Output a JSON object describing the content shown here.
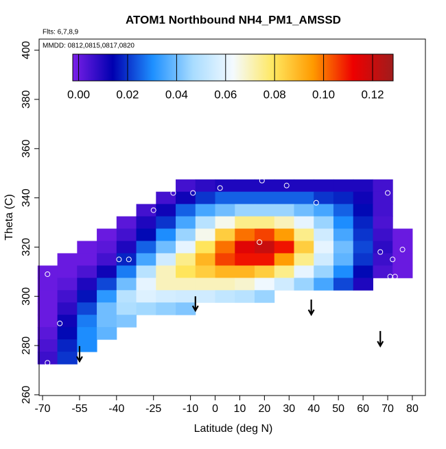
{
  "chart_data": {
    "type": "heatmap",
    "title": "ATOM1 Northbound NH4_PM1_AMSSD",
    "subtitle": "Flts: 6,7,8,9",
    "annotation": "MMDD: 0812,0815,0817,0820",
    "x_label": "Latitude (deg N)",
    "y_label": "Theta (C)",
    "xlim": [
      -71.4,
      85.3
    ],
    "ylim": [
      259.7,
      404.5
    ],
    "xticks": [
      -70,
      -55,
      -40,
      -25,
      -10,
      0,
      10,
      20,
      30,
      40,
      50,
      60,
      70,
      80
    ],
    "yticks": [
      260,
      280,
      300,
      320,
      340,
      360,
      380,
      400
    ],
    "lat": [
      -68,
      -60,
      -52,
      -44,
      -36,
      -28,
      -20,
      -12,
      -4,
      4,
      12,
      20,
      28,
      36,
      44,
      52,
      60,
      68,
      76
    ],
    "theta": [
      345,
      340,
      335,
      330,
      325,
      320,
      315,
      310,
      305,
      300,
      295,
      290,
      285,
      280,
      275
    ],
    "z": [
      [
        null,
        null,
        null,
        null,
        null,
        null,
        null,
        0.005,
        0.008,
        0.01,
        0.01,
        0.01,
        0.01,
        0.01,
        0.01,
        0.01,
        0.01,
        0.005,
        null
      ],
      [
        null,
        null,
        null,
        null,
        null,
        null,
        0.005,
        0.012,
        0.02,
        0.025,
        0.025,
        0.025,
        0.025,
        0.025,
        0.02,
        0.018,
        0.012,
        0.005,
        null
      ],
      [
        null,
        null,
        null,
        null,
        null,
        0.005,
        0.012,
        0.025,
        0.035,
        0.04,
        0.045,
        0.045,
        0.045,
        0.04,
        0.035,
        0.025,
        0.015,
        0.005,
        null
      ],
      [
        null,
        null,
        null,
        null,
        0.002,
        0.01,
        0.02,
        0.035,
        0.05,
        0.065,
        0.075,
        0.075,
        0.07,
        0.06,
        0.045,
        0.03,
        0.018,
        0.004,
        null
      ],
      [
        null,
        null,
        null,
        0.0,
        0.005,
        0.015,
        0.03,
        0.045,
        0.065,
        0.085,
        0.1,
        0.105,
        0.095,
        0.075,
        0.055,
        0.035,
        0.02,
        0.006,
        0.0
      ],
      [
        null,
        null,
        0.0,
        0.002,
        0.01,
        0.025,
        0.04,
        0.06,
        0.08,
        0.1,
        0.115,
        0.12,
        0.11,
        0.085,
        0.06,
        0.04,
        0.022,
        0.008,
        0.0
      ],
      [
        null,
        0.0,
        0.0,
        0.005,
        0.018,
        0.035,
        0.055,
        0.075,
        0.09,
        0.105,
        0.11,
        0.11,
        0.095,
        0.075,
        0.055,
        0.038,
        0.02,
        0.006,
        0.0
      ],
      [
        0.0,
        0.0,
        0.004,
        0.012,
        0.028,
        0.05,
        0.07,
        0.08,
        0.085,
        0.09,
        0.09,
        0.085,
        0.075,
        0.06,
        0.045,
        0.03,
        0.015,
        0.004,
        0.0
      ],
      [
        0.0,
        0.002,
        0.01,
        0.022,
        0.04,
        0.06,
        0.07,
        0.07,
        0.07,
        0.07,
        0.068,
        0.062,
        0.055,
        0.045,
        0.035,
        0.022,
        0.01,
        null,
        null
      ],
      [
        0.0,
        0.005,
        0.016,
        0.032,
        0.05,
        0.058,
        0.056,
        0.055,
        0.055,
        0.052,
        0.05,
        0.045,
        null,
        null,
        null,
        null,
        null,
        null,
        null
      ],
      [
        0.0,
        0.008,
        0.022,
        0.04,
        0.048,
        0.046,
        0.044,
        0.042,
        null,
        null,
        null,
        null,
        null,
        null,
        null,
        null,
        null,
        null,
        null
      ],
      [
        0.0,
        0.012,
        0.028,
        0.04,
        0.042,
        null,
        null,
        null,
        null,
        null,
        null,
        null,
        null,
        null,
        null,
        null,
        null,
        null,
        null
      ],
      [
        0.002,
        0.015,
        0.03,
        0.038,
        null,
        null,
        null,
        null,
        null,
        null,
        null,
        null,
        null,
        null,
        null,
        null,
        null,
        null,
        null
      ],
      [
        0.004,
        0.018,
        0.03,
        null,
        null,
        null,
        null,
        null,
        null,
        null,
        null,
        null,
        null,
        null,
        null,
        null,
        null,
        null,
        null
      ],
      [
        0.006,
        0.02,
        null,
        null,
        null,
        null,
        null,
        null,
        null,
        null,
        null,
        null,
        null,
        null,
        null,
        null,
        null,
        null,
        null
      ]
    ],
    "colors": [
      "#7b1fe8",
      "#0000b0",
      "#1e90ff",
      "#a8dcff",
      "#f4faff",
      "#ffe860",
      "#ff9a00",
      "#ee0000",
      "#a01c1c"
    ],
    "zlim": [
      -0.0024,
      0.1284
    ],
    "zticks": [
      {
        "value": 0,
        "label": "0.00"
      },
      {
        "value": 0.02,
        "label": "0.02"
      },
      {
        "value": 0.04,
        "label": "0.04"
      },
      {
        "value": 0.06,
        "label": "0.06"
      },
      {
        "value": 0.08,
        "label": "0.08"
      },
      {
        "value": 0.1,
        "label": "0.10"
      },
      {
        "value": 0.12,
        "label": "0.12"
      }
    ],
    "points": {
      "x": [
        -68,
        -63,
        -68,
        -39,
        -35,
        -25,
        -17,
        -9,
        2,
        19,
        29,
        41,
        18,
        70,
        67,
        72,
        71,
        73,
        76
      ],
      "y": [
        309,
        289,
        273,
        315,
        315,
        335,
        342,
        342,
        344,
        347,
        345,
        338,
        322,
        342,
        318,
        315,
        308,
        308,
        319
      ]
    },
    "arrows": {
      "x": [
        -55,
        -8,
        39,
        67
      ],
      "y_start": [
        279.8,
        300,
        298.7,
        285.9
      ],
      "y_end": [
        273.6,
        294.2,
        292.6,
        279.8
      ]
    }
  }
}
